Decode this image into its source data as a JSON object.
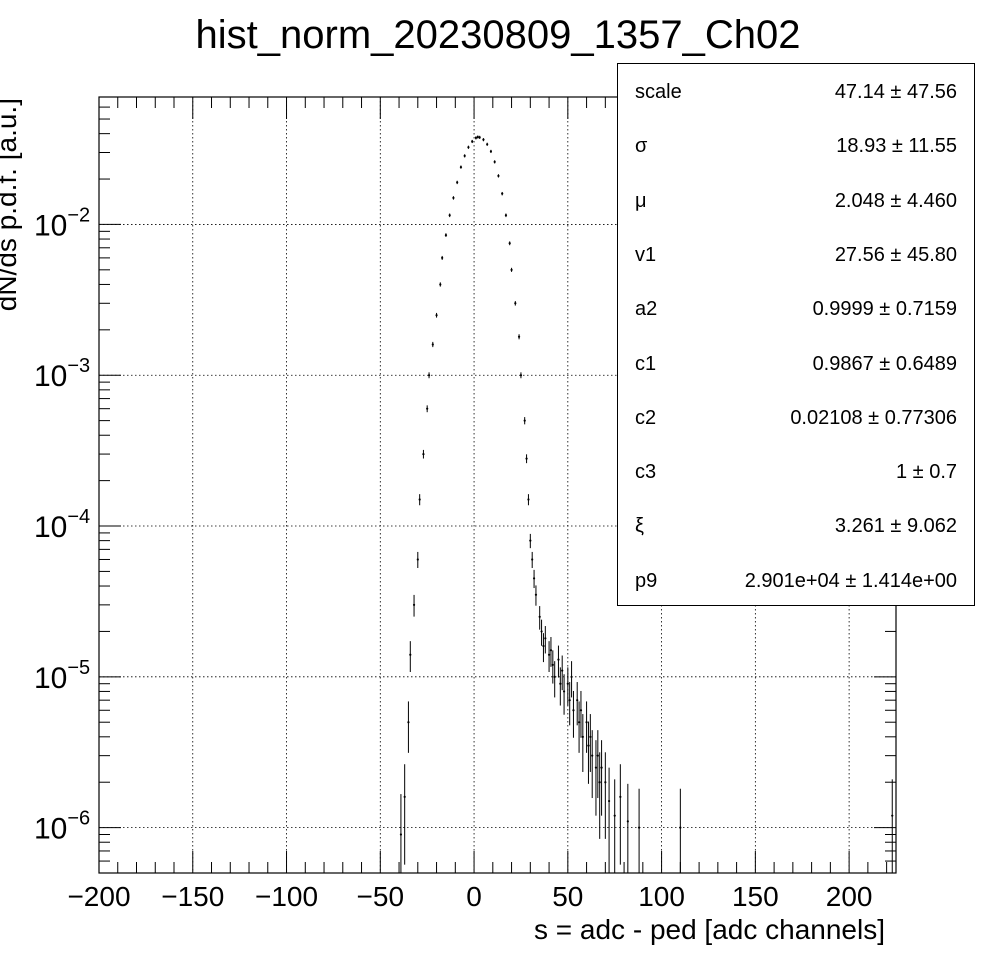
{
  "chart_data": {
    "type": "scatter",
    "title": "hist_norm_20230809_1357_Ch02",
    "xlabel": "s = adc - ped [adc channels]",
    "ylabel": "dN/ds p.d.f. [a.u.]",
    "xlim": [
      -200,
      225
    ],
    "ylim": [
      5e-07,
      0.07
    ],
    "yscale": "log",
    "grid": true,
    "legend": "top-right stats box",
    "x_ticks": [
      "−200",
      "−150",
      "−100",
      "−50",
      "0",
      "50",
      "100",
      "150",
      "200"
    ],
    "y_ticks": [
      {
        "base": "10",
        "exp": "−6"
      },
      {
        "base": "10",
        "exp": "−5"
      },
      {
        "base": "10",
        "exp": "−4"
      },
      {
        "base": "10",
        "exp": "−3"
      },
      {
        "base": "10",
        "exp": "−2"
      }
    ],
    "peak": {
      "x": 2.0,
      "y": 0.038
    },
    "points": [
      [
        -39,
        9e-07
      ],
      [
        -37,
        1.6e-06
      ],
      [
        -35,
        5e-06
      ],
      [
        -34,
        1.4e-05
      ],
      [
        -32,
        3e-05
      ],
      [
        -30,
        6e-05
      ],
      [
        -29,
        0.00015
      ],
      [
        -27,
        0.0003
      ],
      [
        -25,
        0.0006
      ],
      [
        -24,
        0.001
      ],
      [
        -22,
        0.0016
      ],
      [
        -20,
        0.0025
      ],
      [
        -18,
        0.004
      ],
      [
        -17,
        0.006
      ],
      [
        -15,
        0.0085
      ],
      [
        -13,
        0.0115
      ],
      [
        -11,
        0.015
      ],
      [
        -9,
        0.019
      ],
      [
        -7,
        0.024
      ],
      [
        -5,
        0.0285
      ],
      [
        -3,
        0.0325
      ],
      [
        -1,
        0.0355
      ],
      [
        1,
        0.0375
      ],
      [
        2,
        0.038
      ],
      [
        3,
        0.0378
      ],
      [
        5,
        0.0365
      ],
      [
        7,
        0.034
      ],
      [
        9,
        0.0305
      ],
      [
        11,
        0.026
      ],
      [
        13,
        0.021
      ],
      [
        15,
        0.016
      ],
      [
        17,
        0.0115
      ],
      [
        19,
        0.0075
      ],
      [
        20,
        0.005
      ],
      [
        22,
        0.003
      ],
      [
        24,
        0.0018
      ],
      [
        25,
        0.001
      ],
      [
        27,
        0.0005
      ],
      [
        28,
        0.00028
      ],
      [
        29,
        0.00015
      ],
      [
        30,
        8e-05
      ],
      [
        31,
        6e-05
      ],
      [
        32,
        4.5e-05
      ],
      [
        33,
        3.5e-05
      ],
      [
        35,
        2.5e-05
      ],
      [
        36,
        2e-05
      ],
      [
        37,
        1.6e-05
      ],
      [
        38,
        1.8e-05
      ],
      [
        40,
        1.4e-05
      ],
      [
        41,
        1.5e-05
      ],
      [
        42,
        1.2e-05
      ],
      [
        43,
        1e-05
      ],
      [
        45,
        1.3e-05
      ],
      [
        46,
        9e-06
      ],
      [
        47,
        1.1e-05
      ],
      [
        48,
        8e-06
      ],
      [
        50,
        9e-06
      ],
      [
        51,
        7e-06
      ],
      [
        52,
        1e-05
      ],
      [
        53,
        6e-06
      ],
      [
        55,
        7e-06
      ],
      [
        56,
        5e-06
      ],
      [
        57,
        6e-06
      ],
      [
        58,
        4e-06
      ],
      [
        60,
        5e-06
      ],
      [
        61,
        3.5e-06
      ],
      [
        62,
        4e-06
      ],
      [
        63,
        3e-06
      ],
      [
        65,
        2.5e-06
      ],
      [
        66,
        3e-06
      ],
      [
        67,
        2e-06
      ],
      [
        68,
        2.5e-06
      ],
      [
        70,
        2e-06
      ],
      [
        72,
        1.5e-06
      ],
      [
        75,
        1.2e-06
      ],
      [
        78,
        1.6e-06
      ],
      [
        82,
        1.1e-06
      ],
      [
        88,
        1e-06
      ],
      [
        110,
        1e-06
      ],
      [
        223,
        1.2e-06
      ]
    ],
    "stats": [
      {
        "name": "scale",
        "value": "47.14 ± 47.56"
      },
      {
        "name": "σ",
        "value": "18.93 ± 11.55"
      },
      {
        "name": "μ",
        "value": "2.048 ± 4.460"
      },
      {
        "name": "v1",
        "value": "27.56 ± 45.80"
      },
      {
        "name": "a2",
        "value": "0.9999 ± 0.7159"
      },
      {
        "name": "c1",
        "value": "0.9867 ± 0.6489"
      },
      {
        "name": "c2",
        "value": "0.02108 ± 0.77306"
      },
      {
        "name": "c3",
        "value": "1 ± 0.7"
      },
      {
        "name": "ξ",
        "value": "3.261 ± 9.062"
      },
      {
        "name": "p9",
        "value": "2.901e+04 ± 1.414e+00"
      }
    ]
  }
}
